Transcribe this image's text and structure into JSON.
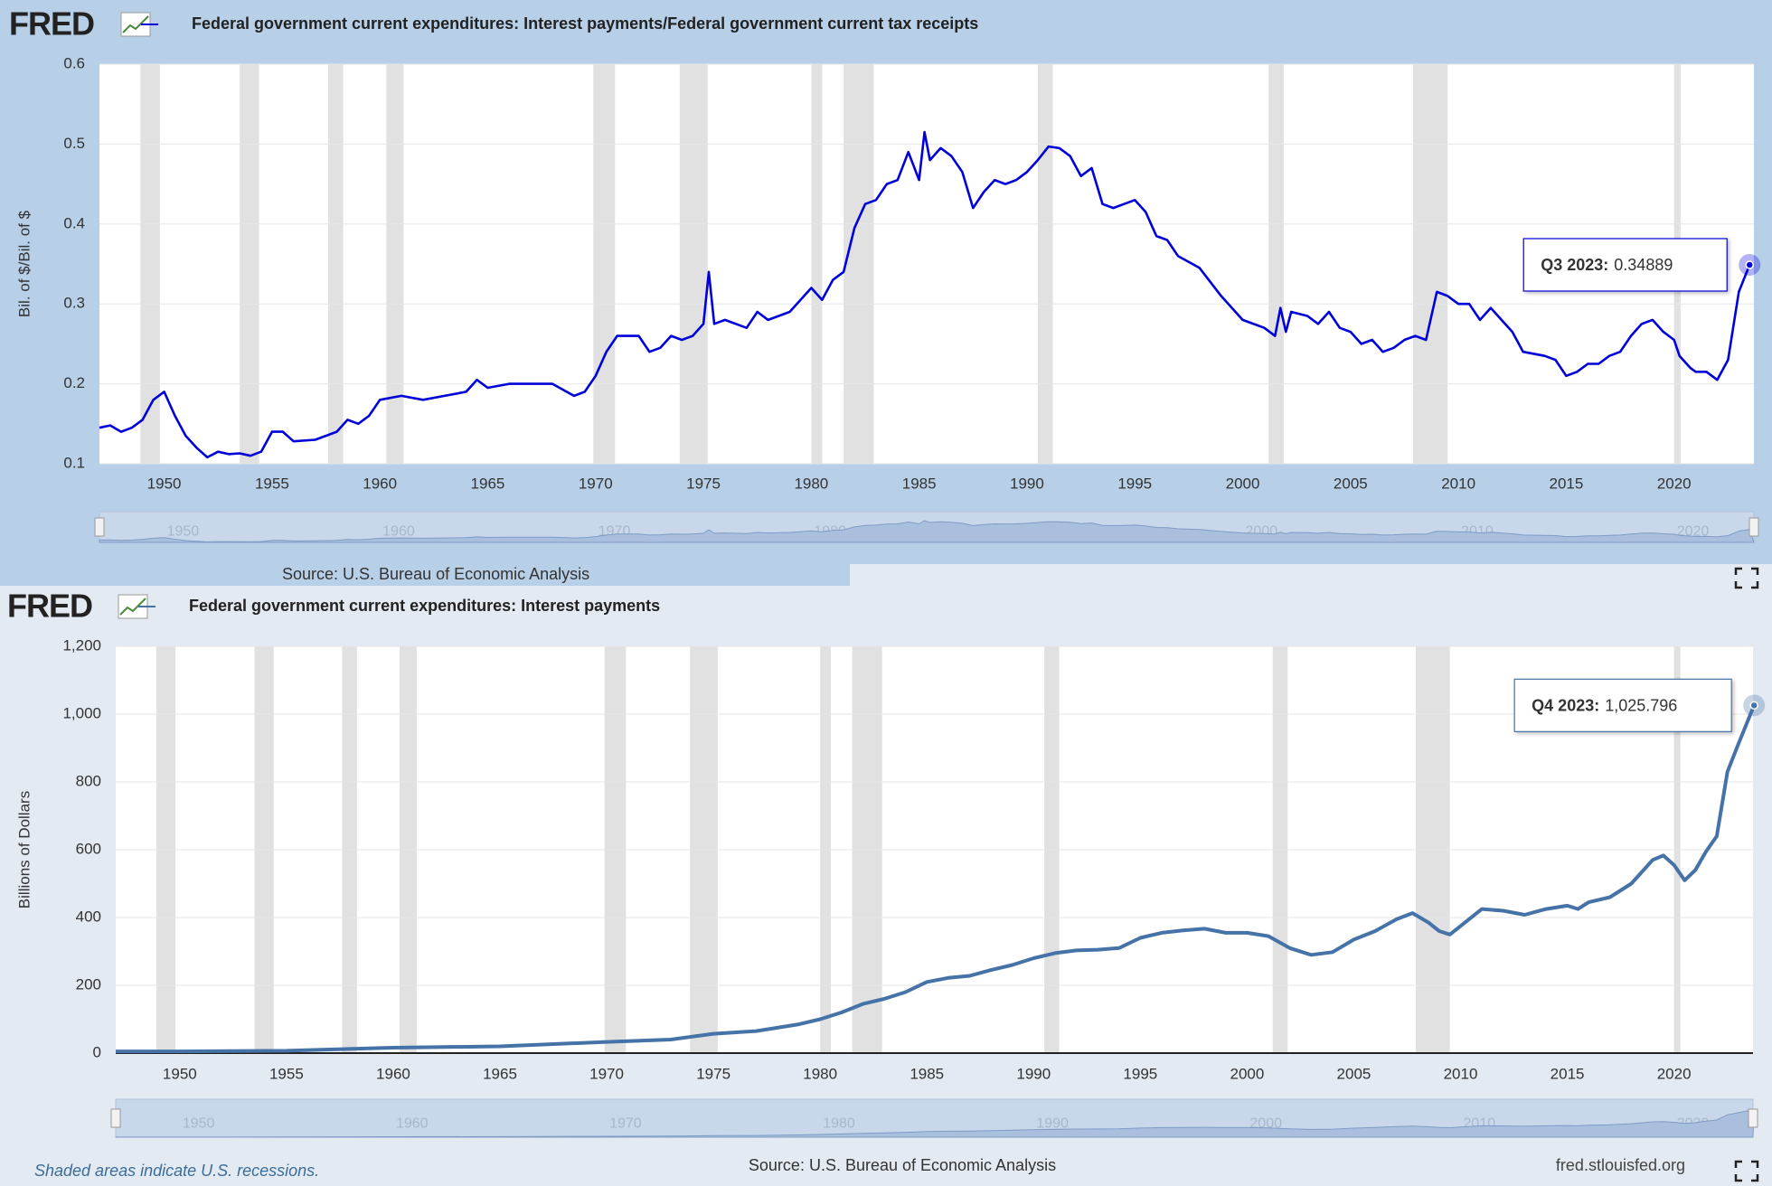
{
  "logo": "FRED",
  "footer": {
    "note": "Shaded areas indicate U.S. recessions.",
    "url": "fred.stlouisfed.org"
  },
  "chart_data": [
    {
      "type": "line",
      "title": "Federal government current expenditures: Interest payments/Federal government current tax receipts",
      "y_label": "Bil. of $/Bil. of $",
      "source": "Source: U.S. Bureau of Economic Analysis",
      "xlim": [
        1947,
        2023.7
      ],
      "xticks": [
        1950,
        1955,
        1960,
        1965,
        1970,
        1975,
        1980,
        1985,
        1990,
        1995,
        2000,
        2005,
        2010,
        2015,
        2020
      ],
      "ylim": [
        0.1,
        0.6
      ],
      "yticks": [
        0.1,
        0.2,
        0.3,
        0.4,
        0.5,
        0.6
      ],
      "grid": true,
      "navigator_ticks": [
        1950,
        1960,
        1970,
        1980,
        1990,
        2000,
        2010,
        2020
      ],
      "recessions": [
        [
          1948.9,
          1949.8
        ],
        [
          1953.5,
          1954.4
        ],
        [
          1957.6,
          1958.3
        ],
        [
          1960.3,
          1961.1
        ],
        [
          1969.9,
          1970.9
        ],
        [
          1973.9,
          1975.2
        ],
        [
          1980,
          1980.5
        ],
        [
          1981.5,
          1982.9
        ],
        [
          1990.5,
          1991.2
        ],
        [
          2001.2,
          2001.9
        ],
        [
          2007.9,
          2009.5
        ],
        [
          2020,
          2020.3
        ]
      ],
      "annotation": {
        "label": "Q3 2023:",
        "value": 0.34889
      },
      "series": [
        {
          "name": "Federal government current expenditures: Interest payments/Federal government current tax receipts",
          "color": "#0000d9",
          "x": [
            1947,
            1947.5,
            1948,
            1948.5,
            1949,
            1949.5,
            1950,
            1950.5,
            1951,
            1951.5,
            1952,
            1952.5,
            1953,
            1953.5,
            1954,
            1954.5,
            1955,
            1955.5,
            1956,
            1957,
            1957.5,
            1958,
            1958.5,
            1959,
            1959.5,
            1960,
            1961,
            1962,
            1963,
            1964,
            1964.5,
            1965,
            1966,
            1967,
            1968,
            1969,
            1969.5,
            1970,
            1970.5,
            1971,
            1972,
            1972.5,
            1973,
            1973.5,
            1974,
            1974.5,
            1975,
            1975.25,
            1975.5,
            1976,
            1977,
            1977.5,
            1978,
            1979,
            1980,
            1980.5,
            1981,
            1981.5,
            1982,
            1982.5,
            1983,
            1983.5,
            1984,
            1984.5,
            1985,
            1985.25,
            1985.5,
            1986,
            1986.5,
            1987,
            1987.5,
            1988,
            1988.5,
            1989,
            1989.5,
            1990,
            1990.5,
            1991,
            1991.5,
            1992,
            1992.5,
            1993,
            1993.5,
            1994,
            1994.5,
            1995,
            1995.5,
            1996,
            1996.5,
            1997,
            1998,
            1999,
            2000,
            2001,
            2001.5,
            2001.75,
            2002,
            2002.25,
            2003,
            2003.5,
            2004,
            2004.5,
            2005,
            2005.5,
            2006,
            2006.5,
            2007,
            2007.5,
            2008,
            2008.5,
            2009,
            2009.5,
            2010,
            2010.5,
            2011,
            2011.5,
            2012,
            2012.5,
            2013,
            2014,
            2014.5,
            2015,
            2015.5,
            2016,
            2016.5,
            2017,
            2017.5,
            2018,
            2018.5,
            2019,
            2019.5,
            2020,
            2020.25,
            2020.75,
            2021,
            2021.5,
            2022,
            2022.5,
            2023,
            2023.5
          ],
          "values": [
            0.145,
            0.148,
            0.14,
            0.145,
            0.155,
            0.18,
            0.19,
            0.16,
            0.135,
            0.12,
            0.108,
            0.115,
            0.112,
            0.113,
            0.11,
            0.115,
            0.14,
            0.14,
            0.128,
            0.13,
            0.135,
            0.14,
            0.155,
            0.15,
            0.16,
            0.18,
            0.185,
            0.18,
            0.185,
            0.19,
            0.205,
            0.195,
            0.2,
            0.2,
            0.2,
            0.185,
            0.19,
            0.21,
            0.24,
            0.26,
            0.26,
            0.24,
            0.245,
            0.26,
            0.255,
            0.26,
            0.275,
            0.34,
            0.275,
            0.28,
            0.27,
            0.29,
            0.28,
            0.29,
            0.32,
            0.305,
            0.33,
            0.34,
            0.395,
            0.425,
            0.43,
            0.45,
            0.455,
            0.49,
            0.455,
            0.515,
            0.48,
            0.495,
            0.485,
            0.465,
            0.42,
            0.44,
            0.455,
            0.45,
            0.455,
            0.465,
            0.48,
            0.497,
            0.495,
            0.485,
            0.46,
            0.47,
            0.425,
            0.42,
            0.425,
            0.43,
            0.415,
            0.385,
            0.38,
            0.36,
            0.345,
            0.31,
            0.28,
            0.27,
            0.26,
            0.295,
            0.265,
            0.29,
            0.285,
            0.275,
            0.29,
            0.27,
            0.265,
            0.25,
            0.255,
            0.24,
            0.245,
            0.255,
            0.26,
            0.255,
            0.315,
            0.31,
            0.3,
            0.3,
            0.28,
            0.295,
            0.28,
            0.265,
            0.24,
            0.235,
            0.23,
            0.21,
            0.215,
            0.225,
            0.225,
            0.235,
            0.24,
            0.26,
            0.275,
            0.28,
            0.265,
            0.255,
            0.235,
            0.22,
            0.215,
            0.215,
            0.205,
            0.23,
            0.315,
            0.34889
          ]
        }
      ]
    },
    {
      "type": "line",
      "title": "Federal government current expenditures: Interest payments",
      "y_label": "Billions of Dollars",
      "source": "Source: U.S. Bureau of Economic Analysis",
      "xlim": [
        1947,
        2023.7
      ],
      "xticks": [
        1950,
        1955,
        1960,
        1965,
        1970,
        1975,
        1980,
        1985,
        1990,
        1995,
        2000,
        2005,
        2010,
        2015,
        2020
      ],
      "ylim": [
        0,
        1200
      ],
      "yticks": [
        0,
        200,
        400,
        600,
        800,
        {
          "value": 1000,
          "label": "1,000"
        },
        {
          "value": 1200,
          "label": "1,200"
        }
      ],
      "grid": true,
      "navigator_ticks": [
        1950,
        1960,
        1970,
        1980,
        1990,
        2000,
        2010,
        2020
      ],
      "recessions": [
        [
          1948.9,
          1949.8
        ],
        [
          1953.5,
          1954.4
        ],
        [
          1957.6,
          1958.3
        ],
        [
          1960.3,
          1961.1
        ],
        [
          1969.9,
          1970.9
        ],
        [
          1973.9,
          1975.2
        ],
        [
          1980,
          1980.5
        ],
        [
          1981.5,
          1982.9
        ],
        [
          1990.5,
          1991.2
        ],
        [
          2001.2,
          2001.9
        ],
        [
          2007.9,
          2009.5
        ],
        [
          2020,
          2020.3
        ]
      ],
      "annotation": {
        "label": "Q4 2023:",
        "value": 1025.796,
        "value_label": "1,025.796"
      },
      "series": [
        {
          "name": "Federal government current expenditures: Interest payments",
          "color": "#4572a7",
          "x": [
            1947,
            1950,
            1955,
            1960,
            1965,
            1970,
            1973,
            1975,
            1977,
            1979,
            1980,
            1981,
            1982,
            1983,
            1984,
            1985,
            1986,
            1987,
            1988,
            1989,
            1990,
            1991,
            1992,
            1993,
            1994,
            1995,
            1996,
            1997,
            1998,
            1999,
            2000,
            2001,
            2002,
            2003,
            2004,
            2005,
            2006,
            2007,
            2007.75,
            2008.5,
            2009,
            2009.5,
            2010,
            2011,
            2012,
            2013,
            2014,
            2015,
            2015.5,
            2016,
            2017,
            2018,
            2019,
            2019.5,
            2020,
            2020.5,
            2021,
            2021.5,
            2022,
            2022.5,
            2023,
            2023.75
          ],
          "values": [
            5,
            5,
            7,
            16,
            20,
            33,
            40,
            57,
            65,
            85,
            100,
            120,
            145,
            160,
            180,
            210,
            222,
            228,
            245,
            260,
            280,
            295,
            303,
            305,
            310,
            340,
            355,
            362,
            367,
            355,
            355,
            345,
            310,
            290,
            298,
            335,
            360,
            395,
            413,
            385,
            360,
            350,
            375,
            425,
            420,
            408,
            425,
            435,
            425,
            445,
            460,
            500,
            570,
            583,
            555,
            510,
            540,
            595,
            640,
            830,
            910,
            1025.796
          ]
        }
      ]
    }
  ]
}
